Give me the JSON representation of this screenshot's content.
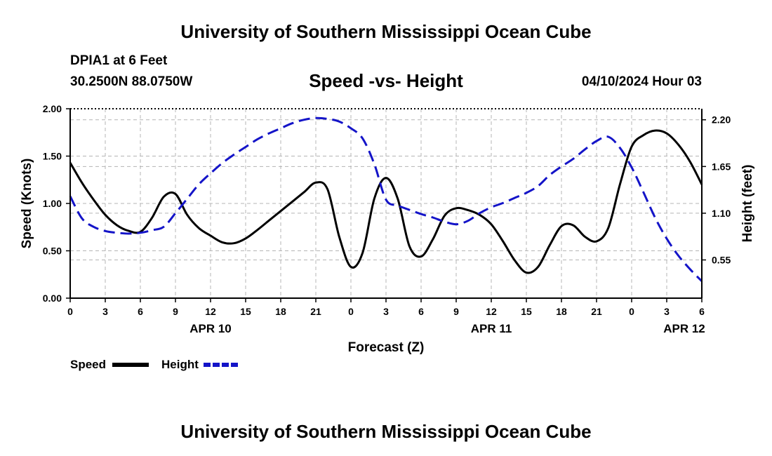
{
  "header": {
    "title": "University of Southern Mississippi Ocean Cube",
    "station": "DPIA1 at 6 Feet",
    "coords": "30.2500N  88.0750W",
    "datetime": "04/10/2024 Hour 03"
  },
  "footer": {
    "title": "University of Southern Mississippi Ocean Cube"
  },
  "colors": {
    "speed": "#000000",
    "height": "#1414c8",
    "grid": "#b4b4b4"
  },
  "chart_data": {
    "type": "line",
    "title": "Speed -vs- Height",
    "xlabel": "Forecast (Z)",
    "ylabel": "Speed (Knots)",
    "y2label": "Height (feet)",
    "xlim": [
      0,
      54
    ],
    "ylim": [
      0,
      2
    ],
    "y2lim": [
      0.1,
      2.33
    ],
    "x_ticks": [
      0,
      3,
      6,
      9,
      12,
      15,
      18,
      21,
      24,
      27,
      30,
      33,
      36,
      39,
      42,
      45,
      48,
      51,
      54
    ],
    "x_tick_labels": [
      "0",
      "3",
      "6",
      "9",
      "12",
      "15",
      "18",
      "21",
      "0",
      "3",
      "6",
      "9",
      "12",
      "15",
      "18",
      "21",
      "0",
      "3",
      "6"
    ],
    "day_labels": [
      {
        "x": 12,
        "label": "APR 10"
      },
      {
        "x": 36,
        "label": "APR 11"
      },
      {
        "x": 52.5,
        "label": "APR 12"
      }
    ],
    "y_ticks": [
      0,
      0.5,
      1,
      1.5,
      2
    ],
    "y_tick_labels": [
      "0.00",
      "0.50",
      "1.00",
      "1.50",
      "2.00"
    ],
    "y2_ticks": [
      0.55,
      1.1,
      1.65,
      2.2
    ],
    "y2_tick_labels": [
      "0.55",
      "1.10",
      "1.65",
      "2.20"
    ],
    "legend": [
      {
        "name": "Speed",
        "style": "solid"
      },
      {
        "name": "Height",
        "style": "dashed"
      }
    ],
    "series": [
      {
        "name": "Speed",
        "axis": "left",
        "x": [
          0,
          1,
          2,
          3,
          4,
          5,
          6,
          7,
          8,
          9,
          10,
          11,
          12,
          13,
          14,
          15,
          16,
          17,
          18,
          19,
          20,
          21,
          22,
          23,
          24,
          25,
          26,
          27,
          28,
          29,
          30,
          31,
          32,
          33,
          34,
          35,
          36,
          37,
          38,
          39,
          40,
          41,
          42,
          43,
          44,
          45,
          46,
          47,
          48,
          49,
          50,
          51,
          52,
          53,
          54
        ],
        "values": [
          1.43,
          1.22,
          1.04,
          0.88,
          0.77,
          0.71,
          0.7,
          0.85,
          1.07,
          1.1,
          0.88,
          0.74,
          0.66,
          0.59,
          0.58,
          0.63,
          0.72,
          0.82,
          0.92,
          1.02,
          1.12,
          1.22,
          1.15,
          0.65,
          0.33,
          0.48,
          1.05,
          1.27,
          1.05,
          0.55,
          0.44,
          0.62,
          0.87,
          0.95,
          0.93,
          0.88,
          0.78,
          0.6,
          0.4,
          0.27,
          0.33,
          0.56,
          0.76,
          0.77,
          0.65,
          0.6,
          0.74,
          1.2,
          1.6,
          1.72,
          1.77,
          1.74,
          1.62,
          1.44,
          1.2
        ]
      },
      {
        "name": "Height",
        "axis": "right",
        "x": [
          0,
          1,
          2,
          3,
          4,
          5,
          6,
          7,
          8,
          9,
          10,
          11,
          12,
          13,
          14,
          15,
          16,
          17,
          18,
          19,
          20,
          21,
          22,
          23,
          24,
          25,
          26,
          27,
          28,
          29,
          30,
          31,
          32,
          33,
          34,
          35,
          36,
          37,
          38,
          39,
          40,
          41,
          42,
          43,
          44,
          45,
          46,
          47,
          48,
          49,
          50,
          51,
          52,
          53,
          54
        ],
        "values": [
          1.3,
          1.04,
          0.94,
          0.89,
          0.87,
          0.86,
          0.87,
          0.9,
          0.94,
          1.1,
          1.27,
          1.44,
          1.57,
          1.69,
          1.79,
          1.88,
          1.97,
          2.04,
          2.1,
          2.16,
          2.2,
          2.22,
          2.21,
          2.18,
          2.1,
          1.98,
          1.68,
          1.26,
          1.19,
          1.14,
          1.09,
          1.05,
          1.0,
          0.97,
          1.01,
          1.1,
          1.17,
          1.22,
          1.28,
          1.34,
          1.42,
          1.55,
          1.65,
          1.74,
          1.85,
          1.95,
          2.0,
          1.87,
          1.64,
          1.35,
          1.05,
          0.8,
          0.6,
          0.44,
          0.3
        ]
      }
    ]
  }
}
